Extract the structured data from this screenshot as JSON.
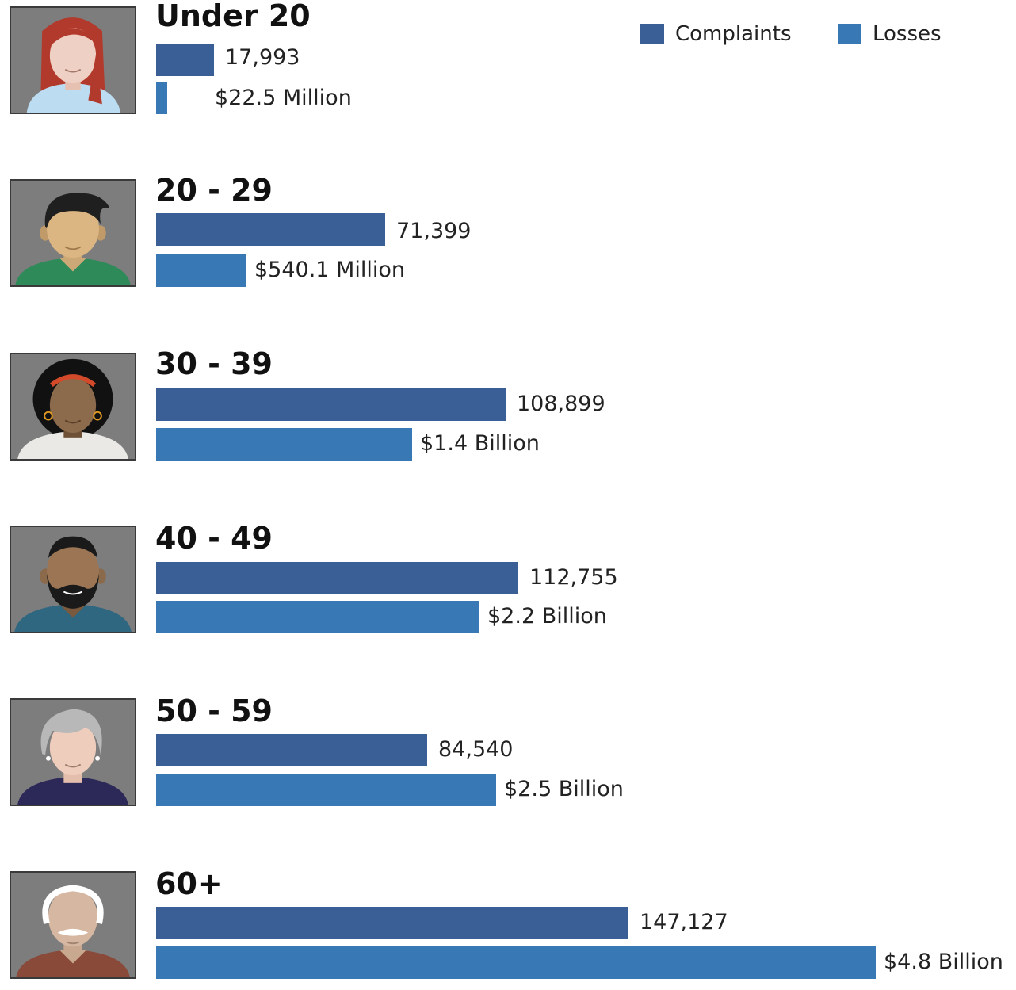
{
  "legend": [
    {
      "label": "Complaints",
      "color": "#3a5f96"
    },
    {
      "label": "Losses",
      "color": "#3878b5"
    }
  ],
  "chart_data": {
    "type": "bar",
    "orientation": "horizontal",
    "title": "",
    "categories": [
      "Under 20",
      "20 - 29",
      "30 - 39",
      "40 - 49",
      "50 - 59",
      "60+"
    ],
    "series": [
      {
        "name": "Complaints",
        "color": "#3a5f96",
        "values": [
          17993,
          71399,
          108899,
          112755,
          84540,
          147127
        ],
        "labels": [
          "17,993",
          "71,399",
          "108,899",
          "112,755",
          "84,540",
          "147,127"
        ]
      },
      {
        "name": "Losses",
        "unit": "USD",
        "color": "#3878b5",
        "values": [
          22500000,
          540100000,
          1400000000,
          2200000000,
          2500000000,
          4800000000
        ],
        "labels": [
          "$22.5 Million",
          "$540.1 Million",
          "$1.4 Billion",
          "$2.2 Billion",
          "$2.5 Billion",
          "$4.8 Billion"
        ]
      }
    ],
    "avatars": [
      "young-woman-red-hair-icon",
      "young-man-dark-hair-icon",
      "woman-curly-hair-icon",
      "bearded-man-icon",
      "gray-haired-woman-icon",
      "bald-elderly-man-icon"
    ]
  }
}
